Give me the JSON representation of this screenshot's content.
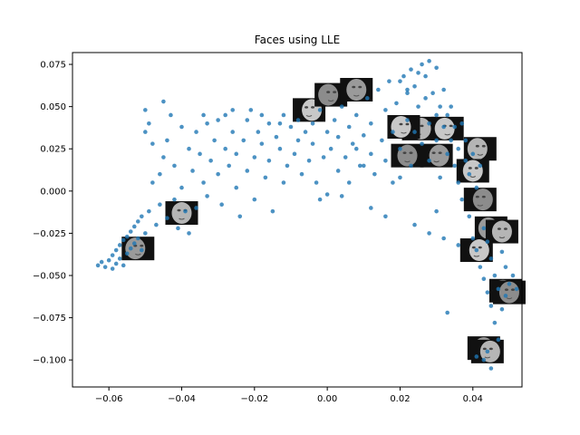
{
  "chart_data": {
    "type": "scatter",
    "title": "Faces using LLE",
    "xlabel": "",
    "ylabel": "",
    "xlim": [
      -0.07,
      0.0535
    ],
    "ylim": [
      -0.116,
      0.082
    ],
    "grid": false,
    "legend": "none",
    "point_color": "#1f77b4",
    "xticks": [
      -0.06,
      -0.04,
      -0.02,
      0.0,
      0.02,
      0.04
    ],
    "xtick_labels": [
      "−0.06",
      "−0.04",
      "−0.02",
      "0.00",
      "0.02",
      "0.04"
    ],
    "yticks": [
      0.075,
      0.05,
      0.025,
      0.0,
      -0.025,
      -0.05,
      -0.075,
      -0.1
    ],
    "ytick_labels": [
      "0.075",
      "0.050",
      "0.025",
      "0.000",
      "−0.025",
      "−0.050",
      "−0.075",
      "−0.100"
    ],
    "points": [
      [
        -0.063,
        -0.044
      ],
      [
        -0.062,
        -0.042
      ],
      [
        -0.061,
        -0.045
      ],
      [
        -0.06,
        -0.041
      ],
      [
        -0.059,
        -0.046
      ],
      [
        -0.059,
        -0.038
      ],
      [
        -0.058,
        -0.043
      ],
      [
        -0.058,
        -0.035
      ],
      [
        -0.057,
        -0.04
      ],
      [
        -0.057,
        -0.032
      ],
      [
        -0.056,
        -0.044
      ],
      [
        -0.056,
        -0.029
      ],
      [
        -0.055,
        -0.037
      ],
      [
        -0.055,
        -0.027
      ],
      [
        -0.054,
        -0.034
      ],
      [
        -0.054,
        -0.024
      ],
      [
        -0.053,
        -0.031
      ],
      [
        -0.053,
        -0.021
      ],
      [
        -0.052,
        -0.028
      ],
      [
        -0.052,
        -0.018
      ],
      [
        -0.051,
        -0.035
      ],
      [
        -0.051,
        -0.015
      ],
      [
        -0.05,
        -0.025
      ],
      [
        -0.05,
        0.048
      ],
      [
        -0.05,
        0.035
      ],
      [
        -0.049,
        0.04
      ],
      [
        -0.049,
        -0.012
      ],
      [
        -0.048,
        0.028
      ],
      [
        -0.048,
        0.005
      ],
      [
        -0.047,
        -0.02
      ],
      [
        -0.046,
        0.01
      ],
      [
        -0.046,
        -0.008
      ],
      [
        -0.045,
        0.053
      ],
      [
        -0.045,
        0.02
      ],
      [
        -0.044,
        -0.016
      ],
      [
        -0.044,
        0.03
      ],
      [
        -0.043,
        0.045
      ],
      [
        -0.042,
        -0.005
      ],
      [
        -0.042,
        0.015
      ],
      [
        -0.041,
        -0.022
      ],
      [
        -0.04,
        0.038
      ],
      [
        -0.04,
        0.002
      ],
      [
        -0.039,
        -0.012
      ],
      [
        -0.038,
        0.025
      ],
      [
        -0.038,
        -0.025
      ],
      [
        -0.037,
        0.012
      ],
      [
        -0.036,
        0.035
      ],
      [
        -0.036,
        -0.01
      ],
      [
        -0.035,
        0.022
      ],
      [
        -0.034,
        0.005
      ],
      [
        -0.033,
        0.04
      ],
      [
        -0.033,
        -0.003
      ],
      [
        -0.032,
        0.018
      ],
      [
        -0.031,
        0.03
      ],
      [
        -0.03,
        0.01
      ],
      [
        -0.029,
        -0.008
      ],
      [
        -0.028,
        0.025
      ],
      [
        -0.028,
        0.045
      ],
      [
        -0.027,
        0.015
      ],
      [
        -0.026,
        0.035
      ],
      [
        -0.025,
        0.002
      ],
      [
        -0.025,
        0.022
      ],
      [
        -0.024,
        -0.015
      ],
      [
        -0.023,
        0.03
      ],
      [
        -0.022,
        0.042
      ],
      [
        -0.022,
        0.012
      ],
      [
        -0.021,
        0.048
      ],
      [
        -0.02,
        0.02
      ],
      [
        -0.02,
        -0.005
      ],
      [
        -0.019,
        0.035
      ],
      [
        -0.018,
        0.028
      ],
      [
        -0.017,
        0.008
      ],
      [
        -0.016,
        0.04
      ],
      [
        -0.016,
        0.018
      ],
      [
        -0.015,
        -0.012
      ],
      [
        -0.014,
        0.032
      ],
      [
        -0.013,
        0.025
      ],
      [
        -0.012,
        0.045
      ],
      [
        -0.012,
        0.005
      ],
      [
        -0.011,
        0.015
      ],
      [
        -0.01,
        0.038
      ],
      [
        -0.009,
        0.022
      ],
      [
        -0.008,
        0.03
      ],
      [
        -0.008,
        0.042
      ],
      [
        -0.007,
        0.01
      ],
      [
        -0.006,
        0.035
      ],
      [
        -0.005,
        0.018
      ],
      [
        -0.004,
        0.04
      ],
      [
        -0.004,
        0.028
      ],
      [
        -0.003,
        0.005
      ],
      [
        -0.002,
        0.048
      ],
      [
        -0.001,
        0.02
      ],
      [
        0.0,
        0.035
      ],
      [
        0.0,
        -0.002
      ],
      [
        0.001,
        0.025
      ],
      [
        0.002,
        0.042
      ],
      [
        0.003,
        0.012
      ],
      [
        0.003,
        0.032
      ],
      [
        0.004,
        0.05
      ],
      [
        0.005,
        0.02
      ],
      [
        0.006,
        0.038
      ],
      [
        0.006,
        0.005
      ],
      [
        0.007,
        0.028
      ],
      [
        0.008,
        0.045
      ],
      [
        0.009,
        0.015
      ],
      [
        0.01,
        0.033
      ],
      [
        0.011,
        0.055
      ],
      [
        0.012,
        0.022
      ],
      [
        0.012,
        0.04
      ],
      [
        0.013,
        0.01
      ],
      [
        0.014,
        0.06
      ],
      [
        0.015,
        0.03
      ],
      [
        0.016,
        0.048
      ],
      [
        0.016,
        0.018
      ],
      [
        0.017,
        0.065
      ],
      [
        0.018,
        0.035
      ],
      [
        0.019,
        0.052
      ],
      [
        0.02,
        0.025
      ],
      [
        0.02,
        0.008
      ],
      [
        0.021,
        0.068
      ],
      [
        0.022,
        0.042
      ],
      [
        0.022,
        0.058
      ],
      [
        0.023,
        0.015
      ],
      [
        0.024,
        0.062
      ],
      [
        0.024,
        0.035
      ],
      [
        0.025,
        0.05
      ],
      [
        0.026,
        0.075
      ],
      [
        0.026,
        0.028
      ],
      [
        0.027,
        0.055
      ],
      [
        0.027,
        0.068
      ],
      [
        0.028,
        0.04
      ],
      [
        0.028,
        0.018
      ],
      [
        0.029,
        0.058
      ],
      [
        0.03,
        0.045
      ],
      [
        0.03,
        0.03
      ],
      [
        0.031,
        0.05
      ],
      [
        0.031,
        0.008
      ],
      [
        0.032,
        0.038
      ],
      [
        0.032,
        0.06
      ],
      [
        0.033,
        0.022
      ],
      [
        0.033,
        0.045
      ],
      [
        0.034,
        0.03
      ],
      [
        0.034,
        0.05
      ],
      [
        0.035,
        0.015
      ],
      [
        0.035,
        0.038
      ],
      [
        0.036,
        0.025
      ],
      [
        0.036,
        0.005
      ],
      [
        0.037,
        0.04
      ],
      [
        0.037,
        -0.005
      ],
      [
        0.038,
        0.018
      ],
      [
        0.038,
        0.03
      ],
      [
        0.039,
        -0.015
      ],
      [
        0.039,
        0.01
      ],
      [
        0.04,
        -0.028
      ],
      [
        0.04,
        0.022
      ],
      [
        0.041,
        -0.035
      ],
      [
        0.041,
        0.002
      ],
      [
        0.042,
        -0.045
      ],
      [
        0.042,
        0.015
      ],
      [
        0.043,
        -0.052
      ],
      [
        0.043,
        -0.022
      ],
      [
        0.044,
        -0.06
      ],
      [
        0.044,
        -0.03
      ],
      [
        0.045,
        -0.068
      ],
      [
        0.045,
        -0.04
      ],
      [
        0.046,
        -0.078
      ],
      [
        0.046,
        -0.05
      ],
      [
        0.047,
        -0.088
      ],
      [
        0.047,
        -0.058
      ],
      [
        0.048,
        -0.07
      ],
      [
        0.048,
        -0.036
      ],
      [
        0.049,
        -0.045
      ],
      [
        0.049,
        -0.062
      ],
      [
        0.05,
        -0.055
      ],
      [
        0.051,
        -0.05
      ],
      [
        0.052,
        -0.058
      ],
      [
        0.044,
        -0.095
      ],
      [
        0.045,
        -0.105
      ],
      [
        0.043,
        -0.1
      ],
      [
        0.041,
        -0.098
      ],
      [
        0.02,
        0.065
      ],
      [
        0.023,
        0.072
      ],
      [
        0.025,
        0.07
      ],
      [
        0.028,
        0.077
      ],
      [
        0.03,
        0.073
      ],
      [
        0.022,
        0.06
      ],
      [
        -0.034,
        0.045
      ],
      [
        -0.03,
        0.042
      ],
      [
        -0.026,
        0.048
      ],
      [
        -0.018,
        0.045
      ],
      [
        -0.013,
        0.04
      ],
      [
        0.008,
        0.025
      ],
      [
        0.01,
        0.015
      ],
      [
        0.018,
        0.005
      ],
      [
        -0.002,
        -0.005
      ],
      [
        0.004,
        -0.003
      ],
      [
        0.012,
        -0.01
      ],
      [
        0.016,
        -0.015
      ],
      [
        0.024,
        -0.02
      ],
      [
        0.028,
        -0.025
      ],
      [
        0.032,
        -0.028
      ],
      [
        0.036,
        -0.032
      ],
      [
        0.033,
        -0.072
      ],
      [
        0.03,
        -0.012
      ]
    ],
    "thumbnails": [
      [
        -0.052,
        -0.034
      ],
      [
        -0.04,
        -0.013
      ],
      [
        -0.005,
        0.048
      ],
      [
        0.001,
        0.057
      ],
      [
        0.008,
        0.06
      ],
      [
        0.025,
        0.037
      ],
      [
        0.033,
        0.037
      ],
      [
        0.022,
        0.021
      ],
      [
        0.03,
        0.021
      ],
      [
        0.042,
        0.025
      ],
      [
        0.04,
        0.012
      ],
      [
        0.042,
        -0.005
      ],
      [
        0.045,
        -0.022
      ],
      [
        0.048,
        -0.024
      ],
      [
        0.041,
        -0.035
      ],
      [
        0.049,
        -0.059
      ],
      [
        0.043,
        -0.093
      ],
      [
        0.044,
        -0.095
      ],
      [
        0.021,
        0.038
      ],
      [
        0.05,
        -0.06
      ]
    ]
  }
}
